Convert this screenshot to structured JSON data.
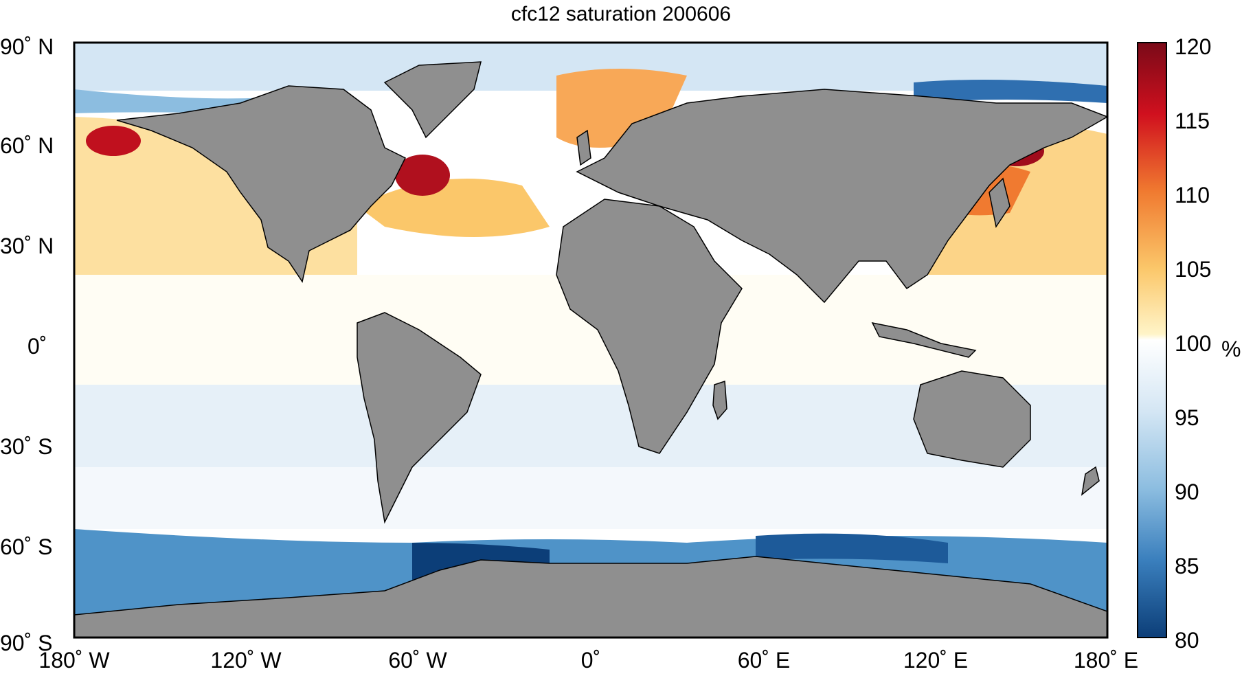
{
  "title": "cfc12 saturation 200606",
  "lat_ticks": [
    "90˚ N",
    "60˚ N",
    "30˚ N",
    "0˚",
    "30˚ S",
    "60˚ S",
    "90˚ S"
  ],
  "lon_ticks": [
    "180˚ W",
    "120˚ W",
    "60˚ W",
    "0˚",
    "60˚ E",
    "120˚ E",
    "180˚ E"
  ],
  "colorbar": {
    "ticks": [
      "120",
      "115",
      "110",
      "105",
      "100",
      "95",
      "90",
      "85",
      "80"
    ],
    "unit": "%",
    "range": [
      80,
      120
    ]
  },
  "colors": {
    "land": "#8f8f8f",
    "coast": "#000000",
    "warm_high": "#7a0a18",
    "warm_mid": "#f07a30",
    "warm_low": "#fde9a8",
    "neutral": "#ffffff",
    "cool_low": "#d4e6f4",
    "cool_mid": "#4f93c8",
    "cool_high": "#0c3e78"
  }
}
